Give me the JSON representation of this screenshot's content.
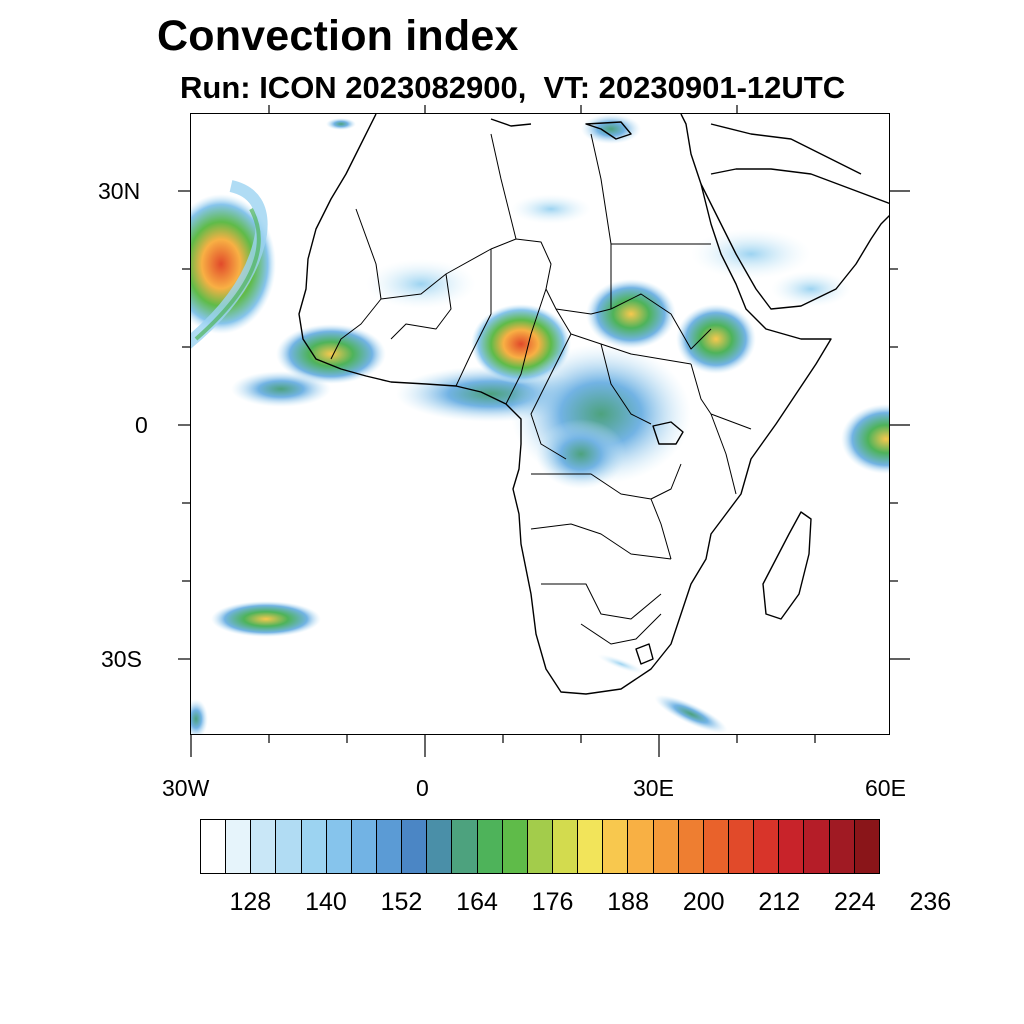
{
  "map": {
    "title": "Convection index",
    "subtitle": "Run: ICON 2023082900,  VT: 20230901-12UTC",
    "region": "Africa",
    "lat_labels": [
      "30N",
      "0",
      "30S"
    ],
    "lon_labels": [
      "30W",
      "0",
      "30E",
      "60E"
    ]
  },
  "colorbar": {
    "labels": [
      "128",
      "140",
      "152",
      "164",
      "176",
      "188",
      "200",
      "212",
      "224",
      "236"
    ],
    "colors": [
      "#ffffff",
      "#e6f4fb",
      "#c9e7f7",
      "#b1dcf3",
      "#9cd3f1",
      "#86c4ec",
      "#72b3e4",
      "#5b9bd5",
      "#4b86c5",
      "#4a8fa8",
      "#4da27e",
      "#4eb35a",
      "#5fbb49",
      "#a3cc4b",
      "#d3db4e",
      "#f2e45a",
      "#f8c84e",
      "#f8b044",
      "#f49a3a",
      "#ee7e31",
      "#e9622b",
      "#e14a2a",
      "#d8342a",
      "#c8232a",
      "#b51d28",
      "#a01a23",
      "#8a1519"
    ]
  }
}
